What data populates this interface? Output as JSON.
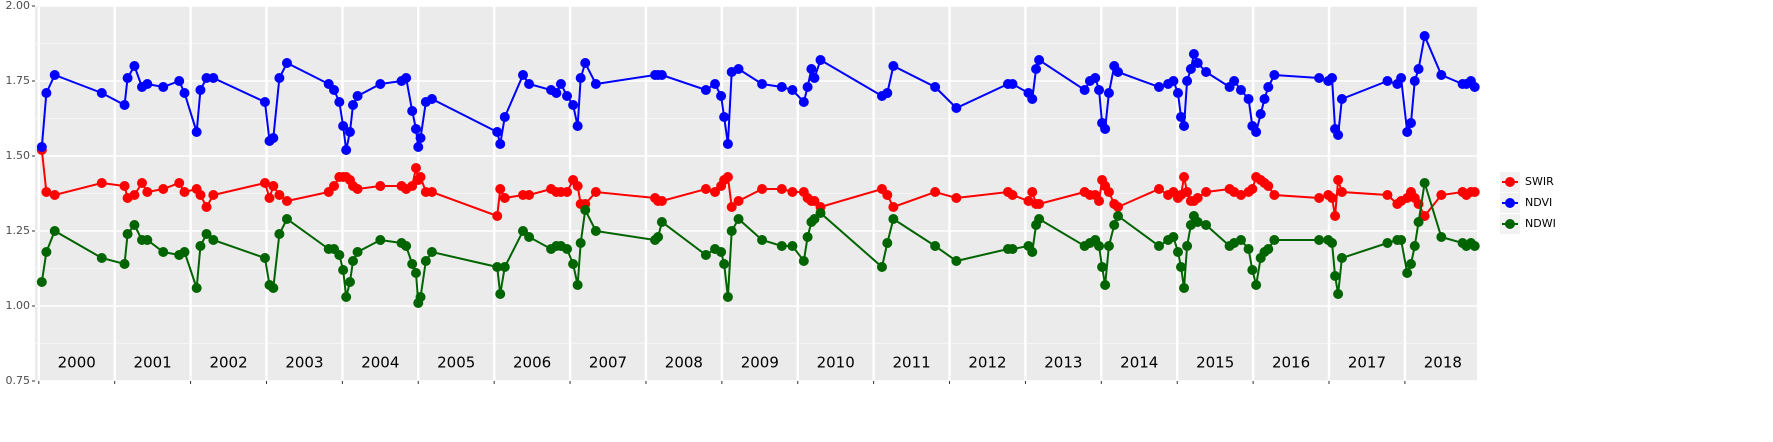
{
  "chart_data": {
    "type": "line",
    "x": [
      2000.04,
      2000.1,
      2000.21,
      2000.83,
      2001.13,
      2001.17,
      2001.26,
      2001.36,
      2001.43,
      2001.64,
      2001.85,
      2001.92,
      2002.08,
      2002.13,
      2002.21,
      2002.3,
      2002.98,
      2003.04,
      2003.09,
      2003.17,
      2003.27,
      2003.82,
      2003.89,
      2003.96,
      2004.01,
      2004.05,
      2004.1,
      2004.14,
      2004.2,
      2004.5,
      2004.78,
      2004.84,
      2004.92,
      2004.97,
      2005.0,
      2005.03,
      2005.1,
      2005.18,
      2006.04,
      2006.08,
      2006.14,
      2006.38,
      2006.46,
      2006.75,
      2006.82,
      2006.88,
      2006.96,
      2007.04,
      2007.1,
      2007.14,
      2007.2,
      2007.34,
      2008.12,
      2008.16,
      2008.21,
      2008.79,
      2008.91,
      2008.99,
      2009.03,
      2009.08,
      2009.13,
      2009.22,
      2009.53,
      2009.79,
      2009.93,
      2010.08,
      2010.13,
      2010.18,
      2010.22,
      2010.3,
      2011.11,
      2011.18,
      2011.26,
      2011.81,
      2012.09,
      2012.77,
      2012.83,
      2013.04,
      2013.09,
      2013.14,
      2013.18,
      2013.78,
      2013.85,
      2013.92,
      2013.97,
      2014.01,
      2014.05,
      2014.1,
      2014.17,
      2014.22,
      2014.76,
      2014.88,
      2014.95,
      2015.01,
      2015.05,
      2015.09,
      2015.13,
      2015.18,
      2015.22,
      2015.27,
      2015.38,
      2015.69,
      2015.75,
      2015.84,
      2015.94,
      2015.99,
      2016.04,
      2016.1,
      2016.15,
      2016.2,
      2016.28,
      2016.87,
      2016.99,
      2017.04,
      2017.08,
      2017.12,
      2017.17,
      2017.77,
      2017.9,
      2017.95,
      2018.03,
      2018.08,
      2018.13,
      2018.18,
      2018.26,
      2018.48,
      2018.76,
      2018.81,
      2018.87,
      2018.92
    ],
    "series": [
      {
        "name": "SWIR",
        "color": "#ff0000",
        "values": [
          1.52,
          1.38,
          1.37,
          1.41,
          1.4,
          1.36,
          1.37,
          1.41,
          1.38,
          1.39,
          1.41,
          1.38,
          1.39,
          1.37,
          1.33,
          1.37,
          1.41,
          1.36,
          1.4,
          1.37,
          1.35,
          1.38,
          1.4,
          1.43,
          1.43,
          1.43,
          1.42,
          1.4,
          1.39,
          1.4,
          1.4,
          1.39,
          1.4,
          1.46,
          1.42,
          1.43,
          1.38,
          1.38,
          1.3,
          1.39,
          1.36,
          1.37,
          1.37,
          1.39,
          1.38,
          1.38,
          1.38,
          1.42,
          1.4,
          1.34,
          1.34,
          1.38,
          1.36,
          1.35,
          1.35,
          1.39,
          1.38,
          1.4,
          1.42,
          1.43,
          1.33,
          1.35,
          1.39,
          1.39,
          1.38,
          1.38,
          1.36,
          1.35,
          1.35,
          1.33,
          1.39,
          1.37,
          1.33,
          1.38,
          1.36,
          1.38,
          1.37,
          1.35,
          1.38,
          1.34,
          1.34,
          1.38,
          1.37,
          1.37,
          1.35,
          1.42,
          1.4,
          1.38,
          1.34,
          1.33,
          1.39,
          1.37,
          1.38,
          1.36,
          1.37,
          1.43,
          1.38,
          1.35,
          1.35,
          1.36,
          1.38,
          1.39,
          1.38,
          1.37,
          1.38,
          1.39,
          1.43,
          1.42,
          1.41,
          1.4,
          1.37,
          1.36,
          1.37,
          1.36,
          1.3,
          1.42,
          1.38,
          1.37,
          1.34,
          1.35,
          1.36,
          1.38,
          1.36,
          1.34,
          1.3,
          1.37,
          1.38,
          1.37,
          1.38,
          1.38
        ]
      },
      {
        "name": "NDVI",
        "color": "#0000ff",
        "values": [
          1.53,
          1.71,
          1.77,
          1.71,
          1.67,
          1.76,
          1.8,
          1.73,
          1.74,
          1.73,
          1.75,
          1.71,
          1.58,
          1.72,
          1.76,
          1.76,
          1.68,
          1.55,
          1.56,
          1.76,
          1.81,
          1.74,
          1.72,
          1.68,
          1.6,
          1.52,
          1.58,
          1.67,
          1.7,
          1.74,
          1.75,
          1.76,
          1.65,
          1.59,
          1.53,
          1.56,
          1.68,
          1.69,
          1.58,
          1.54,
          1.63,
          1.77,
          1.74,
          1.72,
          1.71,
          1.74,
          1.7,
          1.67,
          1.6,
          1.76,
          1.81,
          1.74,
          1.77,
          1.77,
          1.77,
          1.72,
          1.74,
          1.7,
          1.63,
          1.54,
          1.78,
          1.79,
          1.74,
          1.73,
          1.72,
          1.68,
          1.73,
          1.79,
          1.76,
          1.82,
          1.7,
          1.71,
          1.8,
          1.73,
          1.66,
          1.74,
          1.74,
          1.71,
          1.69,
          1.79,
          1.82,
          1.72,
          1.75,
          1.76,
          1.72,
          1.61,
          1.59,
          1.71,
          1.8,
          1.78,
          1.73,
          1.74,
          1.75,
          1.71,
          1.63,
          1.6,
          1.75,
          1.79,
          1.84,
          1.81,
          1.78,
          1.73,
          1.75,
          1.72,
          1.69,
          1.6,
          1.58,
          1.64,
          1.69,
          1.73,
          1.77,
          1.76,
          1.75,
          1.76,
          1.59,
          1.57,
          1.69,
          1.75,
          1.74,
          1.76,
          1.58,
          1.61,
          1.75,
          1.79,
          1.9,
          1.77,
          1.74,
          1.74,
          1.75,
          1.73
        ]
      },
      {
        "name": "NDWI",
        "color": "#006400",
        "values": [
          1.08,
          1.18,
          1.25,
          1.16,
          1.14,
          1.24,
          1.27,
          1.22,
          1.22,
          1.18,
          1.17,
          1.18,
          1.06,
          1.2,
          1.24,
          1.22,
          1.16,
          1.07,
          1.06,
          1.24,
          1.29,
          1.19,
          1.19,
          1.17,
          1.12,
          1.03,
          1.08,
          1.15,
          1.18,
          1.22,
          1.21,
          1.2,
          1.14,
          1.11,
          1.01,
          1.03,
          1.15,
          1.18,
          1.13,
          1.04,
          1.13,
          1.25,
          1.23,
          1.19,
          1.2,
          1.2,
          1.19,
          1.14,
          1.07,
          1.21,
          1.32,
          1.25,
          1.22,
          1.23,
          1.28,
          1.17,
          1.19,
          1.18,
          1.14,
          1.03,
          1.25,
          1.29,
          1.22,
          1.2,
          1.2,
          1.15,
          1.23,
          1.28,
          1.29,
          1.31,
          1.13,
          1.21,
          1.29,
          1.2,
          1.15,
          1.19,
          1.19,
          1.2,
          1.18,
          1.27,
          1.29,
          1.2,
          1.21,
          1.22,
          1.2,
          1.13,
          1.07,
          1.2,
          1.27,
          1.3,
          1.2,
          1.22,
          1.23,
          1.18,
          1.13,
          1.06,
          1.2,
          1.27,
          1.3,
          1.28,
          1.27,
          1.2,
          1.21,
          1.22,
          1.19,
          1.12,
          1.07,
          1.16,
          1.18,
          1.19,
          1.22,
          1.22,
          1.22,
          1.21,
          1.1,
          1.04,
          1.16,
          1.21,
          1.22,
          1.22,
          1.11,
          1.14,
          1.2,
          1.28,
          1.41,
          1.23,
          1.21,
          1.2,
          1.21,
          1.2
        ]
      }
    ],
    "xlim": [
      1999.95,
      2018.95
    ],
    "xticks": [
      2000,
      2001,
      2002,
      2003,
      2004,
      2005,
      2006,
      2007,
      2008,
      2009,
      2010,
      2011,
      2012,
      2013,
      2014,
      2015,
      2016,
      2017,
      2018
    ],
    "ylim": [
      0.75,
      2.0
    ],
    "yticks": [
      {
        "value": 0.75,
        "label": "0.75"
      },
      {
        "value": 1.0,
        "label": "1.00"
      },
      {
        "value": 1.25,
        "label": "1.25"
      },
      {
        "value": 1.5,
        "label": "1.50"
      },
      {
        "value": 1.75,
        "label": "1.75"
      },
      {
        "value": 2.0,
        "label": "2.00"
      }
    ],
    "grid": true,
    "legend": "right",
    "annotations": [
      {
        "x": 2000.5,
        "y": 0.81,
        "text": "2000"
      },
      {
        "x": 2001.5,
        "y": 0.81,
        "text": "2001"
      },
      {
        "x": 2002.5,
        "y": 0.81,
        "text": "2002"
      },
      {
        "x": 2003.5,
        "y": 0.81,
        "text": "2003"
      },
      {
        "x": 2004.5,
        "y": 0.81,
        "text": "2004"
      },
      {
        "x": 2005.5,
        "y": 0.81,
        "text": "2005"
      },
      {
        "x": 2006.5,
        "y": 0.81,
        "text": "2006"
      },
      {
        "x": 2007.5,
        "y": 0.81,
        "text": "2007"
      },
      {
        "x": 2008.5,
        "y": 0.81,
        "text": "2008"
      },
      {
        "x": 2009.5,
        "y": 0.81,
        "text": "2009"
      },
      {
        "x": 2010.5,
        "y": 0.81,
        "text": "2010"
      },
      {
        "x": 2011.5,
        "y": 0.81,
        "text": "2011"
      },
      {
        "x": 2012.5,
        "y": 0.81,
        "text": "2012"
      },
      {
        "x": 2013.5,
        "y": 0.81,
        "text": "2013"
      },
      {
        "x": 2014.5,
        "y": 0.81,
        "text": "2014"
      },
      {
        "x": 2015.5,
        "y": 0.81,
        "text": "2015"
      },
      {
        "x": 2016.5,
        "y": 0.81,
        "text": "2016"
      },
      {
        "x": 2017.5,
        "y": 0.81,
        "text": "2017"
      },
      {
        "x": 2018.5,
        "y": 0.81,
        "text": "2018"
      }
    ]
  }
}
